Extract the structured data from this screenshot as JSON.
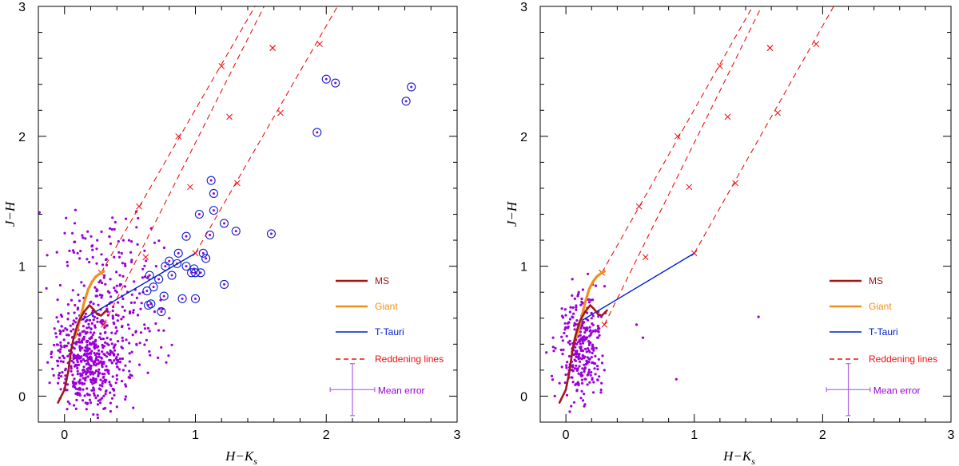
{
  "chart_data": [
    {
      "type": "scatter",
      "title": "",
      "xlabel": "H−K",
      "xlabel_sub": "s",
      "ylabel": "J−H",
      "xlim": [
        -0.2,
        3.0
      ],
      "ylim": [
        -0.2,
        3.0
      ],
      "xticks": [
        0,
        1,
        2,
        3
      ],
      "yticks": [
        0,
        1,
        2,
        3
      ],
      "colors": {
        "points": "#9a00d8",
        "ms": "#a01818",
        "giant": "#f0901a",
        "ttauri": "#0020d0",
        "reddening": "#ee1111",
        "circles": "#1020d0",
        "error": "#b060e0"
      },
      "legend": [
        "MS",
        "Giant",
        "T-Tauri",
        "Reddening lines"
      ],
      "error_label": "Mean error",
      "error_bar": {
        "x": 2.2,
        "y": 0.05,
        "xerr": 0.17,
        "yerr": 0.2
      },
      "ms_curve": [
        [
          -0.05,
          -0.05
        ],
        [
          0.0,
          0.05
        ],
        [
          0.03,
          0.2
        ],
        [
          0.05,
          0.35
        ],
        [
          0.07,
          0.45
        ],
        [
          0.09,
          0.52
        ],
        [
          0.11,
          0.58
        ],
        [
          0.15,
          0.65
        ],
        [
          0.19,
          0.7
        ],
        [
          0.22,
          0.67
        ],
        [
          0.25,
          0.63
        ],
        [
          0.28,
          0.62
        ],
        [
          0.32,
          0.66
        ]
      ],
      "giant_curve": [
        [
          0.08,
          0.45
        ],
        [
          0.1,
          0.52
        ],
        [
          0.12,
          0.6
        ],
        [
          0.15,
          0.72
        ],
        [
          0.18,
          0.82
        ],
        [
          0.21,
          0.88
        ],
        [
          0.24,
          0.92
        ],
        [
          0.28,
          0.95
        ],
        [
          0.3,
          0.96
        ]
      ],
      "ttauri_line": [
        [
          0.12,
          0.58
        ],
        [
          1.0,
          1.1
        ]
      ],
      "reddening_lines": [
        {
          "start": [
            0.28,
            0.95
          ],
          "end": [
            2.0,
            3.95
          ],
          "marks": [
            [
              0.28,
              0.95
            ],
            [
              0.57,
              1.46
            ],
            [
              0.87,
              2.0
            ],
            [
              1.2,
              2.54
            ],
            [
              1.59,
              2.68
            ]
          ]
        },
        {
          "start": [
            0.3,
            0.55
          ],
          "end": [
            2.0,
            3.95
          ],
          "marks": [
            [
              0.3,
              0.55
            ],
            [
              0.62,
              1.07
            ],
            [
              0.96,
              1.61
            ],
            [
              1.26,
              2.15
            ],
            [
              1.59,
              2.68
            ]
          ]
        },
        {
          "start": [
            1.0,
            1.1
          ],
          "end": [
            2.2,
            3.2
          ],
          "marks": [
            [
              1.0,
              1.1
            ],
            [
              1.32,
              1.64
            ],
            [
              1.65,
              2.18
            ],
            [
              1.95,
              2.71
            ]
          ]
        }
      ],
      "circled_points": [
        [
          1.12,
          1.66
        ],
        [
          1.14,
          1.56
        ],
        [
          1.14,
          1.43
        ],
        [
          1.03,
          1.4
        ],
        [
          1.22,
          1.33
        ],
        [
          1.31,
          1.27
        ],
        [
          1.58,
          1.25
        ],
        [
          1.11,
          1.24
        ],
        [
          0.93,
          1.23
        ],
        [
          1.06,
          1.1
        ],
        [
          1.08,
          1.06
        ],
        [
          0.87,
          1.1
        ],
        [
          0.8,
          1.04
        ],
        [
          0.77,
          1.0
        ],
        [
          0.86,
          1.02
        ],
        [
          0.93,
          1.0
        ],
        [
          0.99,
          0.98
        ],
        [
          1.0,
          0.95
        ],
        [
          0.97,
          0.95
        ],
        [
          1.04,
          0.95
        ],
        [
          0.82,
          0.93
        ],
        [
          0.65,
          0.93
        ],
        [
          0.72,
          0.9
        ],
        [
          0.68,
          0.84
        ],
        [
          0.63,
          0.81
        ],
        [
          0.76,
          0.77
        ],
        [
          0.9,
          0.75
        ],
        [
          1.0,
          0.75
        ],
        [
          0.66,
          0.71
        ],
        [
          0.64,
          0.7
        ],
        [
          0.74,
          0.65
        ],
        [
          1.22,
          0.86
        ],
        [
          1.93,
          2.03
        ],
        [
          2.0,
          2.44
        ],
        [
          2.07,
          2.41
        ],
        [
          2.61,
          2.27
        ],
        [
          2.65,
          2.38
        ]
      ],
      "points": [
        [
          0.05,
          0.5
        ],
        [
          0.1,
          0.3
        ],
        [
          0.15,
          0.2
        ],
        [
          0.2,
          0.4
        ],
        [
          -0.05,
          0.1
        ],
        [
          0.3,
          0.25
        ],
        [
          0.12,
          0.05
        ],
        [
          0.25,
          0.6
        ],
        [
          0.4,
          0.5
        ],
        [
          0.5,
          0.65
        ],
        [
          0.6,
          0.8
        ],
        [
          0.7,
          1.0
        ],
        [
          0.45,
          1.2
        ],
        [
          0.55,
          1.3
        ],
        [
          0.35,
          0.9
        ],
        [
          0.25,
          1.2
        ],
        [
          0.1,
          1.1
        ],
        [
          0.08,
          0.7
        ],
        [
          0.18,
          0.15
        ],
        [
          0.02,
          -0.1
        ],
        [
          0.3,
          0.0
        ],
        [
          0.45,
          0.2
        ],
        [
          0.55,
          0.4
        ],
        [
          0.8,
          0.6
        ],
        [
          0.2,
          -0.05
        ],
        [
          -0.1,
          0.3
        ],
        [
          0.4,
          0.8
        ],
        [
          0.65,
          0.5
        ],
        [
          0.15,
          0.85
        ],
        [
          0.35,
          0.35
        ]
      ],
      "n_points": 700,
      "seed": 17
    },
    {
      "type": "scatter",
      "title": "",
      "xlabel": "H−K",
      "xlabel_sub": "s",
      "ylabel": "J−H",
      "xlim": [
        -0.2,
        3.0
      ],
      "ylim": [
        -0.2,
        3.0
      ],
      "xticks": [
        0,
        1,
        2,
        3
      ],
      "yticks": [
        0,
        1,
        2,
        3
      ],
      "colors": {
        "points": "#9a00d8",
        "ms": "#a01818",
        "giant": "#f0901a",
        "ttauri": "#0020d0",
        "reddening": "#ee1111",
        "circles": "#1020d0",
        "error": "#b060e0"
      },
      "legend": [
        "MS",
        "Giant",
        "T-Tauri",
        "Reddening lines"
      ],
      "error_label": "Mean error",
      "error_bar": {
        "x": 2.2,
        "y": 0.05,
        "xerr": 0.17,
        "yerr": 0.2
      },
      "ms_curve": [
        [
          -0.05,
          -0.05
        ],
        [
          0.0,
          0.05
        ],
        [
          0.03,
          0.2
        ],
        [
          0.05,
          0.35
        ],
        [
          0.07,
          0.45
        ],
        [
          0.09,
          0.52
        ],
        [
          0.11,
          0.58
        ],
        [
          0.15,
          0.65
        ],
        [
          0.19,
          0.7
        ],
        [
          0.22,
          0.67
        ],
        [
          0.25,
          0.63
        ],
        [
          0.28,
          0.62
        ],
        [
          0.32,
          0.66
        ]
      ],
      "giant_curve": [
        [
          0.08,
          0.45
        ],
        [
          0.1,
          0.52
        ],
        [
          0.12,
          0.6
        ],
        [
          0.15,
          0.72
        ],
        [
          0.18,
          0.82
        ],
        [
          0.21,
          0.88
        ],
        [
          0.24,
          0.92
        ],
        [
          0.28,
          0.95
        ],
        [
          0.3,
          0.96
        ]
      ],
      "ttauri_line": [
        [
          0.12,
          0.58
        ],
        [
          1.0,
          1.1
        ]
      ],
      "reddening_lines": [
        {
          "start": [
            0.28,
            0.95
          ],
          "end": [
            2.0,
            3.95
          ],
          "marks": [
            [
              0.28,
              0.95
            ],
            [
              0.57,
              1.46
            ],
            [
              0.87,
              2.0
            ],
            [
              1.2,
              2.54
            ],
            [
              1.59,
              2.68
            ]
          ]
        },
        {
          "start": [
            0.3,
            0.55
          ],
          "end": [
            2.0,
            3.95
          ],
          "marks": [
            [
              0.3,
              0.55
            ],
            [
              0.62,
              1.07
            ],
            [
              0.96,
              1.61
            ],
            [
              1.26,
              2.15
            ],
            [
              1.59,
              2.68
            ]
          ]
        },
        {
          "start": [
            1.0,
            1.1
          ],
          "end": [
            2.2,
            3.2
          ],
          "marks": [
            [
              1.0,
              1.1
            ],
            [
              1.32,
              1.64
            ],
            [
              1.65,
              2.18
            ],
            [
              1.95,
              2.71
            ]
          ]
        }
      ],
      "circled_points": [],
      "points": [
        [
          0.1,
          0.3
        ],
        [
          0.05,
          0.2
        ],
        [
          0.15,
          0.45
        ],
        [
          0.2,
          0.6
        ],
        [
          0.1,
          0.8
        ],
        [
          -0.05,
          0.1
        ],
        [
          0.25,
          0.5
        ],
        [
          0.18,
          0.35
        ],
        [
          0.3,
          0.2
        ],
        [
          0.05,
          0.9
        ],
        [
          1.5,
          0.61
        ],
        [
          0.86,
          0.13
        ],
        [
          -0.1,
          0.45
        ],
        [
          0.55,
          0.55
        ],
        [
          0.6,
          0.45
        ]
      ],
      "n_points": 300,
      "seed": 29
    }
  ]
}
